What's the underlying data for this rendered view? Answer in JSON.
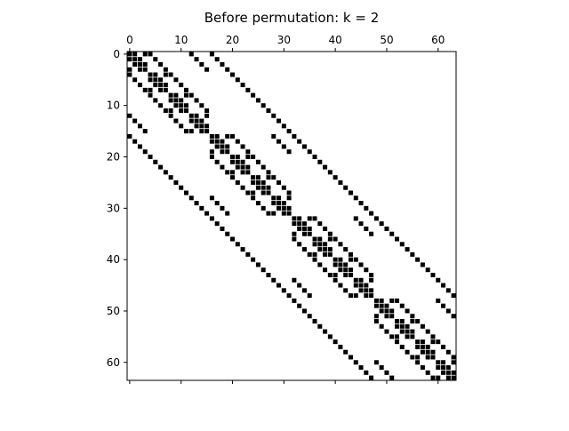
{
  "chart_data": {
    "type": "spy",
    "title": "Before permutation: k = 2",
    "n": 64,
    "mark_color": "#000000",
    "x_ticks": [
      0,
      10,
      20,
      30,
      40,
      50,
      60
    ],
    "y_ticks": [
      0,
      10,
      20,
      30,
      40,
      50,
      60
    ],
    "x_tick_labels": [
      "0",
      "10",
      "20",
      "30",
      "40",
      "50",
      "60"
    ],
    "y_tick_labels": [
      "0",
      "10",
      "20",
      "30",
      "40",
      "50",
      "60"
    ],
    "block_size": 16,
    "subblock_size": 4,
    "within_subblock_offsets": [
      0,
      1
    ],
    "between_subblock_offsets": [
      0,
      4
    ],
    "between_block_offset": 16
  }
}
